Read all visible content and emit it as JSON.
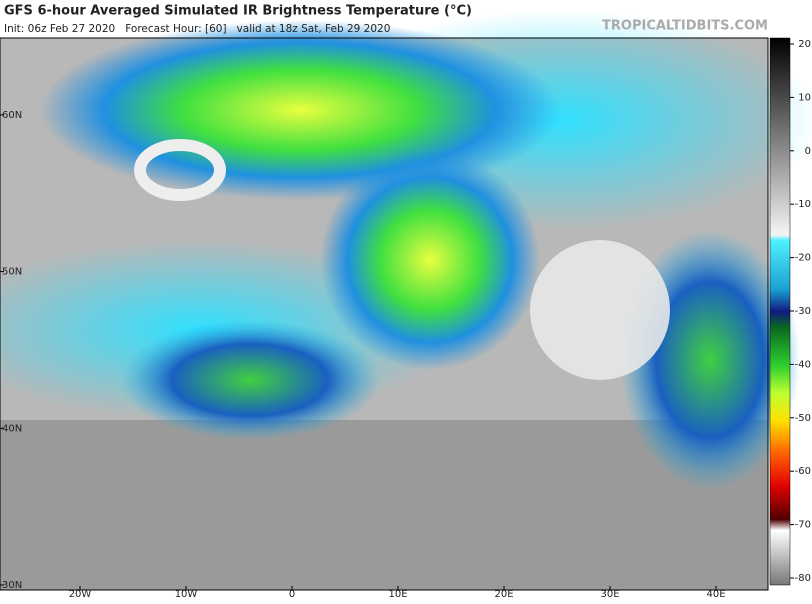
{
  "header": {
    "title": "GFS 6-hour Averaged Simulated IR Brightness Temperature (°C)",
    "subtitle": "Init: 06z Feb 27 2020   Forecast Hour: [60]   valid at 18z Sat, Feb 29 2020",
    "brand": "TROPICALTIDBITS.COM"
  },
  "map": {
    "lat_ticks": [
      {
        "value": 60,
        "label": "60N"
      },
      {
        "value": 50,
        "label": "50N"
      },
      {
        "value": 40,
        "label": "40N"
      },
      {
        "value": 30,
        "label": "30N"
      }
    ],
    "lon_ticks": [
      {
        "value": -20,
        "label": "20W"
      },
      {
        "value": -10,
        "label": "10W"
      },
      {
        "value": 0,
        "label": "0"
      },
      {
        "value": 10,
        "label": "10E"
      },
      {
        "value": 20,
        "label": "20E"
      },
      {
        "value": 30,
        "label": "30E"
      },
      {
        "value": 40,
        "label": "40E"
      }
    ]
  },
  "colorbar": {
    "range": [
      20,
      -80
    ],
    "ticks": [
      20,
      10,
      0,
      -10,
      -20,
      -30,
      -40,
      -50,
      -60,
      -70,
      -80
    ]
  }
}
